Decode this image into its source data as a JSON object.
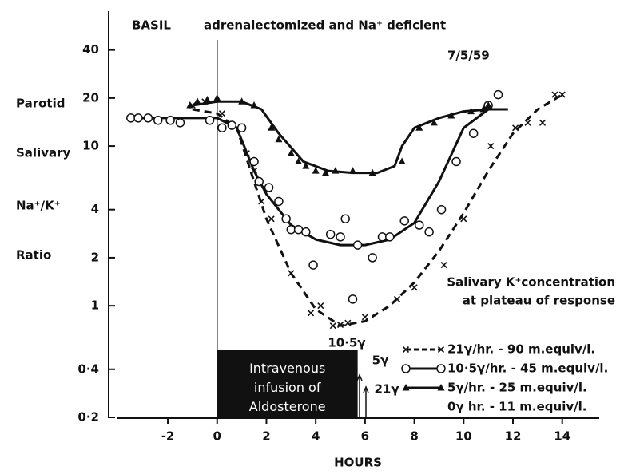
{
  "chart_data": {
    "type": "scatter",
    "title_left": "BASIL",
    "title": "adrenalectomized and Na⁺ deficient",
    "date": "7/5/59",
    "xlabel": "HOURS",
    "ylabel": [
      "Parotid",
      "Salivary",
      "Na⁺/K⁺",
      "Ratio"
    ],
    "yscale": "log",
    "xlim": [
      -4.4,
      15.5
    ],
    "ylim": [
      0.2,
      70
    ],
    "xticks": [
      -2,
      0,
      2,
      4,
      6,
      8,
      10,
      12,
      14
    ],
    "yticks": [
      {
        "value": 0.2,
        "label": "0·2"
      },
      {
        "value": 0.4,
        "label": "0·4"
      },
      1,
      2,
      4,
      10,
      20,
      40
    ],
    "grid": false,
    "legend_title": [
      "Salivary K⁺concentration",
      "at plateau of response"
    ],
    "legend_note": "0γ hr. -  11 m.equiv/l.",
    "series": [
      {
        "name": "21γ/hr. - 90 m.equiv/l.",
        "marker": "cross",
        "dash": "dashed",
        "color": "#111111",
        "points": {
          "x": [
            -1,
            -0.5,
            0.2,
            1.2,
            1.5,
            1.8,
            2.2,
            3,
            3.8,
            4.2,
            4.7,
            5,
            5.3,
            6,
            7.3,
            8,
            9.2,
            10,
            11.1,
            12.1,
            12.6,
            13.2,
            13.7,
            14
          ],
          "y": [
            18,
            19,
            16,
            9,
            7,
            4.5,
            3.5,
            1.6,
            0.9,
            1.0,
            0.75,
            0.76,
            0.78,
            0.85,
            1.1,
            1.3,
            1.8,
            3.5,
            10,
            13,
            14,
            14,
            21,
            21
          ]
        },
        "curve": {
          "x": [
            -1,
            0,
            0.8,
            1.5,
            2,
            3,
            4,
            5,
            6,
            7,
            8,
            9,
            10,
            11,
            12,
            13,
            14
          ],
          "y": [
            17,
            16,
            13,
            6,
            3.5,
            1.6,
            0.95,
            0.75,
            0.8,
            1.0,
            1.4,
            2.2,
            3.8,
            7,
            12,
            17,
            21
          ]
        }
      },
      {
        "name": "10·5γ/hr. - 45 m.equiv/l.",
        "marker": "circle",
        "dash": "solid",
        "color": "#111111",
        "points": {
          "x": [
            -3.5,
            -3.2,
            -2.8,
            -2.4,
            -1.9,
            -1.5,
            -0.3,
            0.2,
            0.6,
            1,
            1.5,
            1.7,
            2.1,
            2.5,
            2.8,
            3,
            3.3,
            3.6,
            3.9,
            4.6,
            5,
            5.2,
            5.7,
            5.5,
            6.3,
            6.7,
            7,
            7.6,
            8.2,
            8.6,
            9.1,
            9.7,
            10.4,
            11,
            11.4
          ],
          "y": [
            15,
            15,
            15,
            14.5,
            14.5,
            14,
            14.5,
            13,
            13.5,
            13,
            8,
            6,
            5.5,
            4.5,
            3.5,
            3,
            3,
            2.9,
            1.8,
            2.8,
            2.7,
            3.5,
            2.4,
            1.1,
            2,
            2.7,
            2.7,
            3.4,
            3.2,
            2.9,
            4,
            8,
            12,
            18,
            21
          ]
        },
        "curve": {
          "x": [
            -3.5,
            0,
            0.8,
            1.5,
            2,
            3,
            4,
            5,
            6,
            7,
            8,
            9,
            10,
            11,
            11.8
          ],
          "y": [
            15,
            15,
            13,
            7,
            5,
            3.2,
            2.6,
            2.4,
            2.4,
            2.6,
            3.3,
            6,
            13,
            17,
            17
          ]
        }
      },
      {
        "name": "5γ/hr. - 25 m.equiv/l.",
        "marker": "triangle",
        "dash": "solid",
        "color": "#111111",
        "points": {
          "x": [
            -1.1,
            -0.8,
            -0.4,
            0,
            1,
            1.5,
            2.2,
            2.5,
            3,
            3.3,
            3.6,
            4,
            4.4,
            4.8,
            5.5,
            6.3,
            7.5,
            8.2,
            8.8,
            9.5,
            10.3,
            10.8,
            11
          ],
          "y": [
            18,
            19,
            19.5,
            20,
            19,
            18,
            13,
            11,
            9,
            8,
            7.5,
            7,
            6.8,
            7,
            7,
            6.8,
            8,
            13,
            14,
            15.5,
            16.5,
            17,
            18
          ]
        },
        "curve": {
          "x": [
            -1,
            0,
            1,
            1.8,
            2.5,
            3.5,
            4.5,
            5.5,
            6.5,
            7.2,
            7.5,
            8,
            9,
            10,
            11,
            11.7
          ],
          "y": [
            18,
            19,
            19,
            17,
            12,
            8,
            7,
            6.8,
            6.8,
            7.5,
            10,
            13,
            15,
            16.5,
            17,
            17
          ]
        }
      }
    ],
    "infusion": {
      "lines": [
        "Intravenous",
        "infusion of",
        "Aldosterone"
      ],
      "x": [
        0,
        5.7
      ],
      "ytop": 0.53
    },
    "annotations": [
      "10·5γ",
      "5γ",
      "21γ"
    ]
  }
}
